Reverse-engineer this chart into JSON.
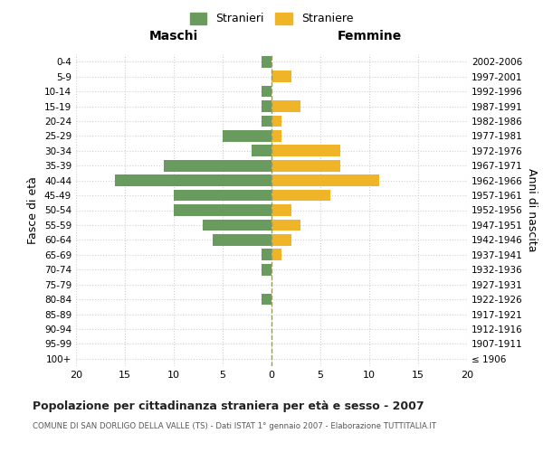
{
  "age_groups": [
    "100+",
    "95-99",
    "90-94",
    "85-89",
    "80-84",
    "75-79",
    "70-74",
    "65-69",
    "60-64",
    "55-59",
    "50-54",
    "45-49",
    "40-44",
    "35-39",
    "30-34",
    "25-29",
    "20-24",
    "15-19",
    "10-14",
    "5-9",
    "0-4"
  ],
  "birth_years": [
    "≤ 1906",
    "1907-1911",
    "1912-1916",
    "1917-1921",
    "1922-1926",
    "1927-1931",
    "1932-1936",
    "1937-1941",
    "1942-1946",
    "1947-1951",
    "1952-1956",
    "1957-1961",
    "1962-1966",
    "1967-1971",
    "1972-1976",
    "1977-1981",
    "1982-1986",
    "1987-1991",
    "1992-1996",
    "1997-2001",
    "2002-2006"
  ],
  "males": [
    0,
    0,
    0,
    0,
    1,
    0,
    1,
    1,
    6,
    7,
    10,
    10,
    16,
    11,
    2,
    5,
    1,
    1,
    1,
    0,
    1
  ],
  "females": [
    0,
    0,
    0,
    0,
    0,
    0,
    0,
    1,
    2,
    3,
    2,
    6,
    11,
    7,
    7,
    1,
    1,
    3,
    0,
    2,
    0
  ],
  "male_color": "#6a9b5e",
  "female_color": "#f0b429",
  "title": "Popolazione per cittadinanza straniera per età e sesso - 2007",
  "subtitle": "COMUNE DI SAN DORLIGO DELLA VALLE (TS) - Dati ISTAT 1° gennaio 2007 - Elaborazione TUTTITALIA.IT",
  "xlabel_left": "Maschi",
  "xlabel_right": "Femmine",
  "ylabel_left": "Fasce di età",
  "ylabel_right": "Anni di nascita",
  "legend_male": "Stranieri",
  "legend_female": "Straniere",
  "xlim": 20,
  "background_color": "#ffffff",
  "grid_color": "#d0d0d0"
}
